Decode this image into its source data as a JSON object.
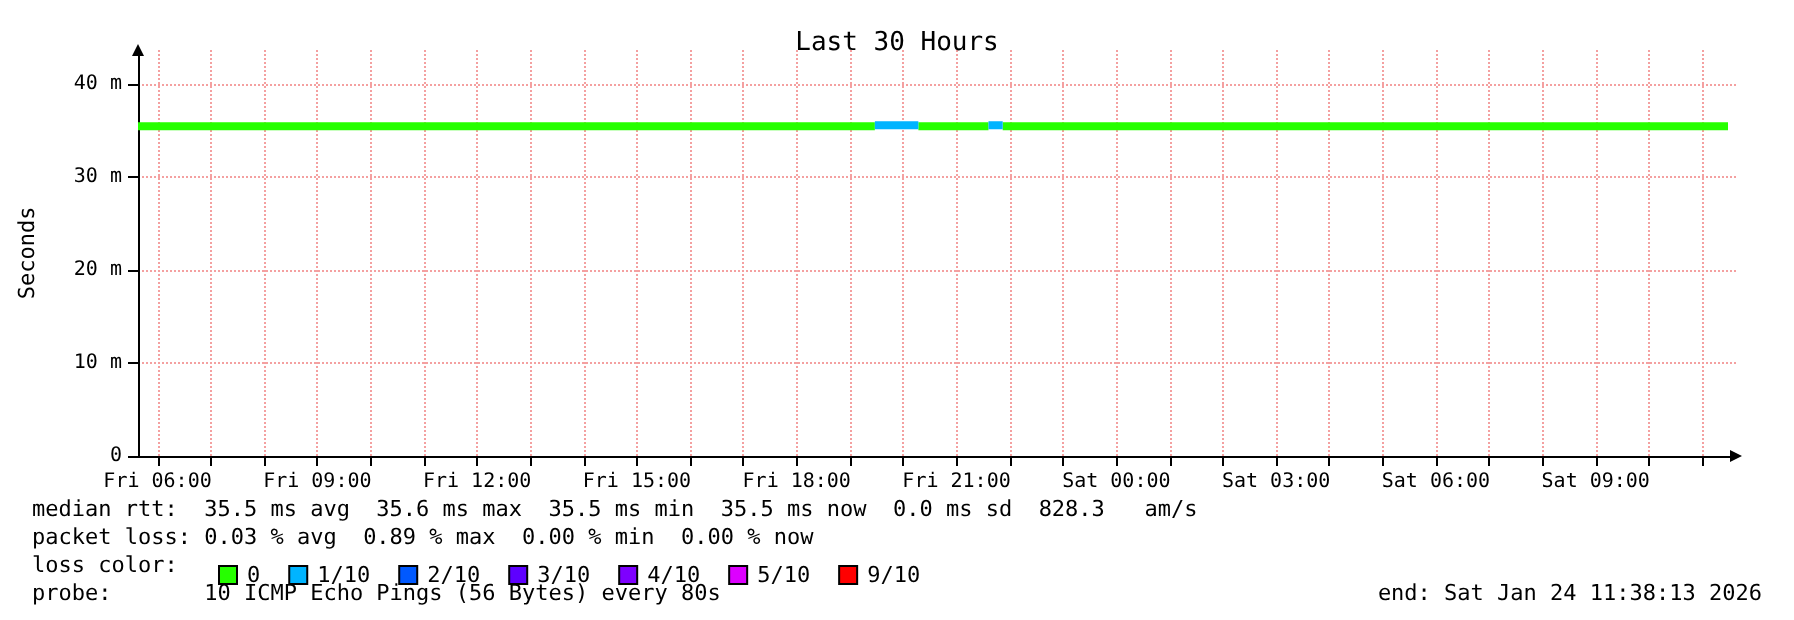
{
  "chart_data": {
    "type": "step",
    "title": "Last 30 Hours",
    "ylabel": "Seconds",
    "xlim": [
      "2026-01-23T05:38",
      "2026-01-24T11:38"
    ],
    "xticks": [
      {
        "value": "2026-01-23T06:00",
        "label": "Fri 06:00"
      },
      {
        "value": "2026-01-23T07:00",
        "label": null
      },
      {
        "value": "2026-01-23T08:00",
        "label": null
      },
      {
        "value": "2026-01-23T09:00",
        "label": "Fri 09:00"
      },
      {
        "value": "2026-01-23T10:00",
        "label": null
      },
      {
        "value": "2026-01-23T11:00",
        "label": null
      },
      {
        "value": "2026-01-23T12:00",
        "label": "Fri 12:00"
      },
      {
        "value": "2026-01-23T13:00",
        "label": null
      },
      {
        "value": "2026-01-23T14:00",
        "label": null
      },
      {
        "value": "2026-01-23T15:00",
        "label": "Fri 15:00"
      },
      {
        "value": "2026-01-23T16:00",
        "label": null
      },
      {
        "value": "2026-01-23T17:00",
        "label": null
      },
      {
        "value": "2026-01-23T18:00",
        "label": "Fri 18:00"
      },
      {
        "value": "2026-01-23T19:00",
        "label": null
      },
      {
        "value": "2026-01-23T20:00",
        "label": null
      },
      {
        "value": "2026-01-23T21:00",
        "label": "Fri 21:00"
      },
      {
        "value": "2026-01-23T22:00",
        "label": null
      },
      {
        "value": "2026-01-23T23:00",
        "label": null
      },
      {
        "value": "2026-01-24T00:00",
        "label": "Sat 00:00"
      },
      {
        "value": "2026-01-24T01:00",
        "label": null
      },
      {
        "value": "2026-01-24T02:00",
        "label": null
      },
      {
        "value": "2026-01-24T03:00",
        "label": "Sat 03:00"
      },
      {
        "value": "2026-01-24T04:00",
        "label": null
      },
      {
        "value": "2026-01-24T05:00",
        "label": null
      },
      {
        "value": "2026-01-24T06:00",
        "label": "Sat 06:00"
      },
      {
        "value": "2026-01-24T07:00",
        "label": null
      },
      {
        "value": "2026-01-24T08:00",
        "label": null
      },
      {
        "value": "2026-01-24T09:00",
        "label": "Sat 09:00"
      },
      {
        "value": "2026-01-24T10:00",
        "label": null
      },
      {
        "value": "2026-01-24T11:00",
        "label": null
      }
    ],
    "ylim": [
      0,
      43.7
    ],
    "yticks": [
      0,
      {
        "value": 10,
        "label": "10 m"
      },
      {
        "value": 20,
        "label": "20 m"
      },
      {
        "value": 30,
        "label": "30 m"
      },
      {
        "value": 40,
        "label": "40 m"
      }
    ],
    "grid": true,
    "legend": "bottom left",
    "series": [
      {
        "name": "0",
        "color": "#26ff00",
        "x": [
          "2026-01-23T05:38",
          "2026-01-23T19:28",
          "2026-01-23T19:29",
          "2026-01-23T20:17",
          "2026-01-23T21:36",
          "2026-01-23T21:37",
          "2026-01-23T21:52",
          "2026-01-24T11:29"
        ],
        "values": [
          35.5,
          35.5,
          null,
          35.5,
          35.5,
          null,
          35.5,
          35.5
        ]
      },
      {
        "name": "1/10",
        "color": "#00b4ff",
        "x": [
          "2026-01-23T19:28",
          "2026-01-23T20:17",
          "2026-01-23T20:18",
          "2026-01-23T21:36",
          "2026-01-23T21:52"
        ],
        "values": [
          35.6,
          35.6,
          null,
          35.6,
          35.6
        ]
      },
      {
        "name": "2/10",
        "color": "#0059ff"
      },
      {
        "name": "3/10",
        "color": "#5e00ff"
      },
      {
        "name": "4/10",
        "color": "#7e00ff"
      },
      {
        "name": "5/10",
        "color": "#dd00ff"
      },
      {
        "name": "9/10",
        "color": "#ff0000"
      }
    ],
    "annotations": [
      "median rtt:  35.5 ms avg  35.6 ms max  35.5 ms min  35.5 ms now  0.0 ms sd  828.3   am/s",
      "packet loss: 0.03 % avg  0.89 % max  0.00 % min  0.00 % now",
      "loss color:",
      "probe:       10 ICMP Echo Pings (56 Bytes) every 80s",
      "end: Sat Jan 24 11:38:13 2026"
    ],
    "marker": "none",
    "line_style": "solid"
  }
}
